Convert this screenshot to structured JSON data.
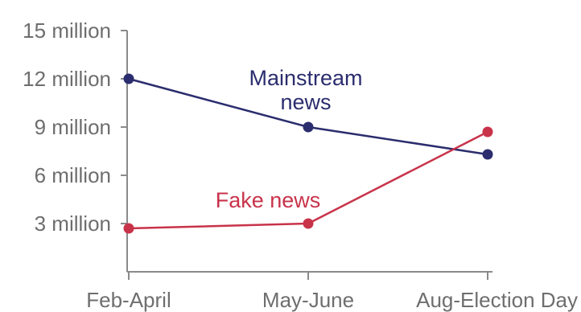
{
  "chart_data": {
    "type": "line",
    "title": "",
    "xlabel": "",
    "ylabel": "",
    "categories": [
      "Feb-April",
      "May-June",
      "Aug-Election Day"
    ],
    "ylim": [
      0,
      15
    ],
    "y_ticks": [
      3,
      6,
      9,
      12,
      15
    ],
    "y_tick_labels": [
      "3 million",
      "6 million",
      "9 million",
      "12 million",
      "15 million"
    ],
    "grid": false,
    "legend": "inline labels",
    "series": [
      {
        "name": "Mainstream news",
        "label_lines": [
          "Mainstream",
          "news"
        ],
        "values": [
          12,
          9,
          7.3
        ],
        "color": "#2b2d6e"
      },
      {
        "name": "Fake news",
        "label_lines": [
          "Fake news"
        ],
        "values": [
          2.7,
          3.0,
          8.7
        ],
        "color": "#c8334a"
      }
    ],
    "axis_color": "#8a8a8a"
  }
}
